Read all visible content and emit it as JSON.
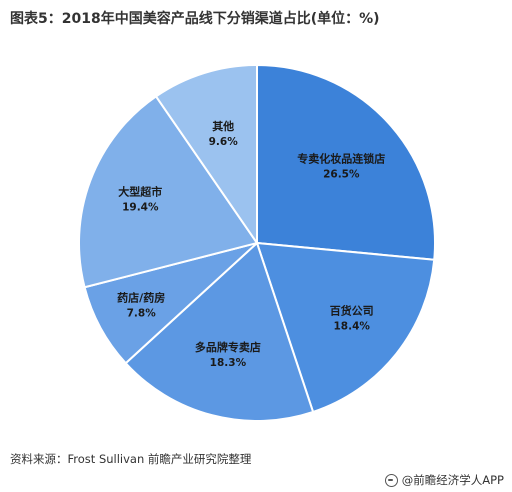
{
  "title": "图表5：2018年中国美容产品线下分销渠道占比(单位：%)",
  "source": "资料来源：Frost Sullivan 前瞻产业研究院整理",
  "credit": "@前瞻经济学人APP",
  "colors": {
    "s1": "#3c82d9",
    "s2": "#4d8fe0",
    "s3": "#5c98e3",
    "s4": "#6aa1e6",
    "s5": "#80b0ea",
    "s6": "#9bc2ef"
  },
  "chart_data": {
    "type": "pie",
    "title": "图表5：2018年中国美容产品线下分销渠道占比(单位：%)",
    "unit": "%",
    "slices": [
      {
        "label": "专卖化妆品连锁店",
        "value": 26.5,
        "value_label": "26.5%"
      },
      {
        "label": "百货公司",
        "value": 18.4,
        "value_label": "18.4%"
      },
      {
        "label": "多品牌专卖店",
        "value": 18.3,
        "value_label": "18.3%"
      },
      {
        "label": "药店/药房",
        "value": 7.8,
        "value_label": "7.8%"
      },
      {
        "label": "大型超市",
        "value": 19.4,
        "value_label": "19.4%"
      },
      {
        "label": "其他",
        "value": 9.6,
        "value_label": "9.6%"
      }
    ]
  }
}
